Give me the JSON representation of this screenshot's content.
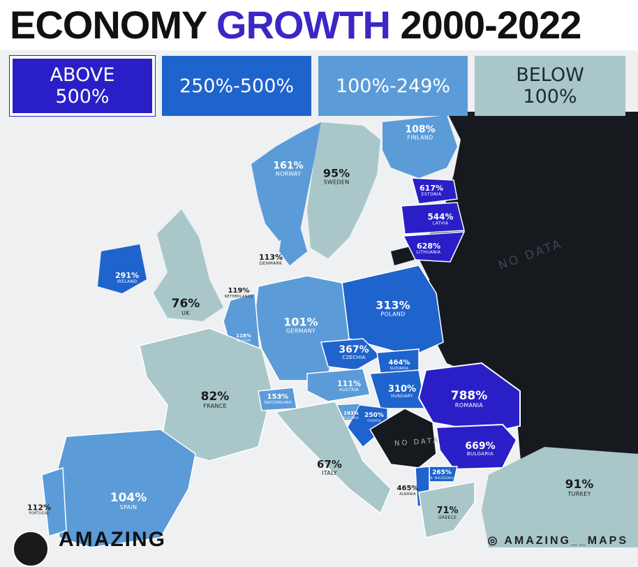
{
  "title": {
    "part1": "ECONOMY ",
    "highlight": "GROWTH",
    "part2": " 2000-2022"
  },
  "legend": [
    {
      "line1": "ABOVE",
      "line2": "500%",
      "color": "#2a1fc7"
    },
    {
      "line1": "250%-500%",
      "line2": "",
      "color": "#1f63cc"
    },
    {
      "line1": "100%-249%",
      "line2": "",
      "color": "#5b9bd8"
    },
    {
      "line1": "BELOW",
      "line2": "100%",
      "color": "#a9c7c9"
    }
  ],
  "countries": [
    {
      "value": "108%",
      "name": "FINLAND"
    },
    {
      "value": "161%",
      "name": "NORWAY"
    },
    {
      "value": "95%",
      "name": "SWEDEN"
    },
    {
      "value": "617%",
      "name": "ESTONIA"
    },
    {
      "value": "544%",
      "name": "LATVIA"
    },
    {
      "value": "628%",
      "name": "LITHUANIA"
    },
    {
      "value": "113%",
      "name": "DENMARK"
    },
    {
      "value": "291%",
      "name": "IRELAND"
    },
    {
      "value": "76%",
      "name": "UK"
    },
    {
      "value": "119%",
      "name": "NETHERLANDS"
    },
    {
      "value": "313%",
      "name": "POLAND"
    },
    {
      "value": "101%",
      "name": "GERMANY"
    },
    {
      "value": "118%",
      "name": "BELGIUM"
    },
    {
      "value": "367%",
      "name": "CZECHIA"
    },
    {
      "value": "464%",
      "name": "SLOVAKIA"
    },
    {
      "value": "111%",
      "name": "AUSTRIA"
    },
    {
      "value": "310%",
      "name": "HUNGARY"
    },
    {
      "value": "788%",
      "name": "ROMANIA"
    },
    {
      "value": "82%",
      "name": "FRANCE"
    },
    {
      "value": "153%",
      "name": "SWITZERLAND"
    },
    {
      "value": "193%",
      "name": "SLOVENIA"
    },
    {
      "value": "250%",
      "name": "CROATIA"
    },
    {
      "value": "669%",
      "name": "BULGARIA"
    },
    {
      "value": "67%",
      "name": "ITALY"
    },
    {
      "value": "265%",
      "name": "N. MACEDONIA"
    },
    {
      "value": "465%",
      "name": "ALBANIA"
    },
    {
      "value": "91%",
      "name": "TURKEY"
    },
    {
      "value": "104%",
      "name": "SPAIN"
    },
    {
      "value": "112%",
      "name": "PORTUGAL"
    },
    {
      "value": "71%",
      "name": "GREECE"
    }
  ],
  "no_data": [
    "NO DATA",
    "NO DATA"
  ],
  "brand": "AMAZING",
  "credit": "◎ AMAZING__MAPS"
}
